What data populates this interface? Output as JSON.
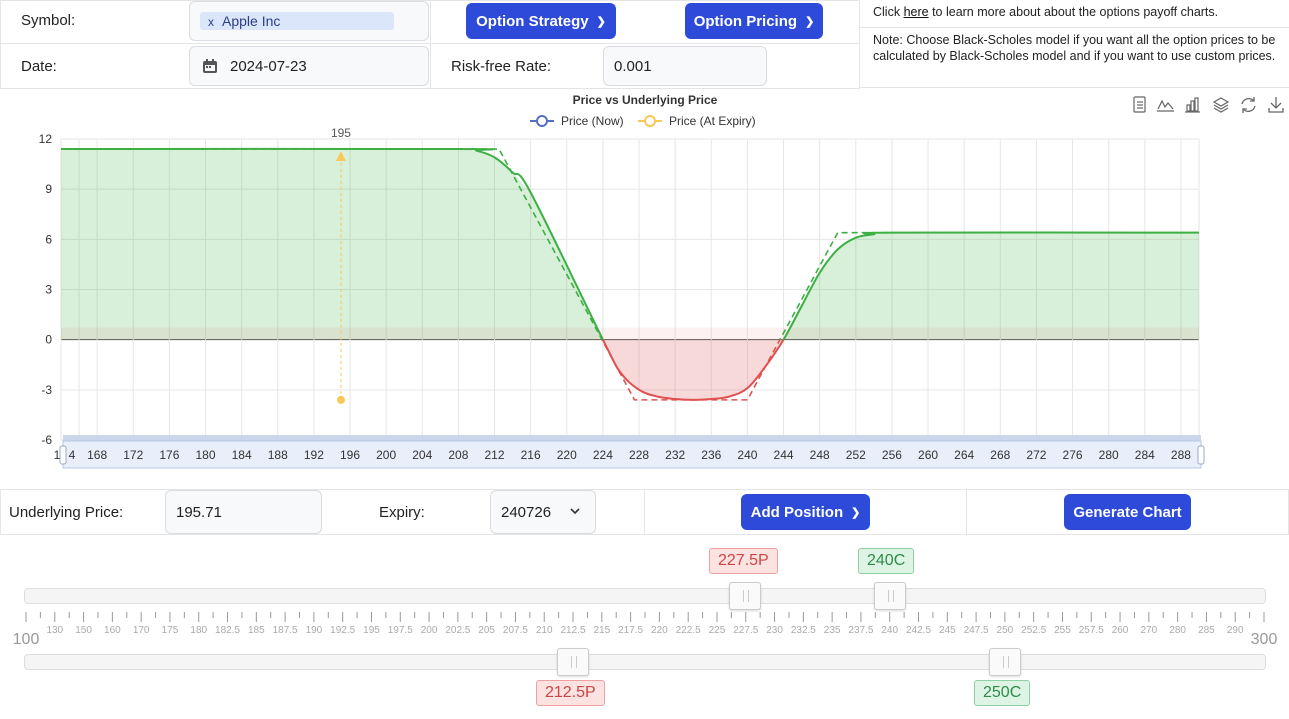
{
  "form": {
    "symbol_label": "Symbol:",
    "symbol_chip": "Apple Inc",
    "symbol_chip_remove": "x",
    "date_label": "Date:",
    "date_value": "2024-07-23",
    "strategy_button": "Option Strategy",
    "pricing_button": "Option Pricing",
    "rate_label": "Risk-free Rate:",
    "rate_value": "0.001"
  },
  "info": {
    "line1_pre": "Click ",
    "line1_link": "here",
    "line1_post": " to learn more about about the options payoff charts.",
    "note": "Note: Choose Black-Scholes model if you want all the option prices to be calculated by Black-Scholes model and if you want to use custom prices."
  },
  "toolbar": {
    "icons": [
      "data-view-icon",
      "line-chart-icon",
      "bar-chart-icon",
      "stack-icon",
      "refresh-icon",
      "download-icon"
    ]
  },
  "chart_data": {
    "type": "line",
    "title": "Price vs Underlying Price",
    "legend": [
      "Price (Now)",
      "Price (At Expiry)"
    ],
    "legend_position": "top-center",
    "colors": {
      "now": "#5470c6",
      "expiry": "#fac858",
      "profit": "#3cb043",
      "loss": "#e05050"
    },
    "ylim": [
      -6,
      12
    ],
    "yticks": [
      12,
      9,
      6,
      3,
      0,
      -3,
      -6
    ],
    "xlim": [
      164,
      290
    ],
    "xticks": [
      168,
      172,
      176,
      180,
      184,
      188,
      192,
      196,
      200,
      204,
      208,
      212,
      216,
      220,
      224,
      228,
      232,
      236,
      240,
      244,
      248,
      252,
      256,
      260,
      264,
      268,
      272,
      276,
      280,
      284,
      288
    ],
    "xtick_first_partial": "1",
    "xtick_first_partial_b": "4",
    "marker": {
      "x": 195,
      "label": "195",
      "y_start": -3.6
    },
    "grid": true,
    "series_expiry": {
      "name": "Price (At Expiry)",
      "x": [
        164,
        210.5,
        212.5,
        227.5,
        240,
        250,
        290
      ],
      "y": [
        11.4,
        11.4,
        11.4,
        -3.6,
        -3.6,
        6.4,
        6.4
      ]
    },
    "series_now": {
      "name": "Price (Now)",
      "x": [
        164,
        208,
        210,
        212,
        214,
        216,
        224,
        226,
        228,
        230,
        232,
        234,
        236,
        238,
        240,
        242,
        244,
        246,
        248,
        250,
        252,
        254,
        256,
        290
      ],
      "y": [
        11.4,
        11.4,
        11.3,
        10.9,
        10.0,
        8.8,
        0.0,
        -2.0,
        -3.0,
        -3.4,
        -3.55,
        -3.6,
        -3.55,
        -3.4,
        -2.9,
        -1.6,
        0.0,
        2.0,
        4.0,
        5.4,
        6.1,
        6.3,
        6.4,
        6.4
      ]
    }
  },
  "bottom": {
    "underlying_label": "Underlying Price:",
    "underlying_value": "195.71",
    "expiry_label": "Expiry:",
    "expiry_value": "240726",
    "add_position_button": "Add Position",
    "generate_button": "Generate Chart"
  },
  "slider": {
    "min_label": "100",
    "max_label": "300",
    "scale_labels": [
      "130",
      "150",
      "160",
      "170",
      "175",
      "180",
      "182.5",
      "185",
      "187.5",
      "190",
      "192.5",
      "195",
      "197.5",
      "200",
      "202.5",
      "205",
      "207.5",
      "210",
      "212.5",
      "215",
      "217.5",
      "220",
      "222.5",
      "225",
      "227.5",
      "230",
      "232.5",
      "235",
      "237.5",
      "240",
      "242.5",
      "245",
      "247.5",
      "250",
      "252.5",
      "255",
      "257.5",
      "260",
      "270",
      "280",
      "285",
      "290"
    ],
    "top_tags": [
      {
        "label": "227.5P",
        "type": "put"
      },
      {
        "label": "240C",
        "type": "call"
      }
    ],
    "bottom_tags": [
      {
        "label": "212.5P",
        "type": "put"
      },
      {
        "label": "250C",
        "type": "call"
      }
    ]
  }
}
